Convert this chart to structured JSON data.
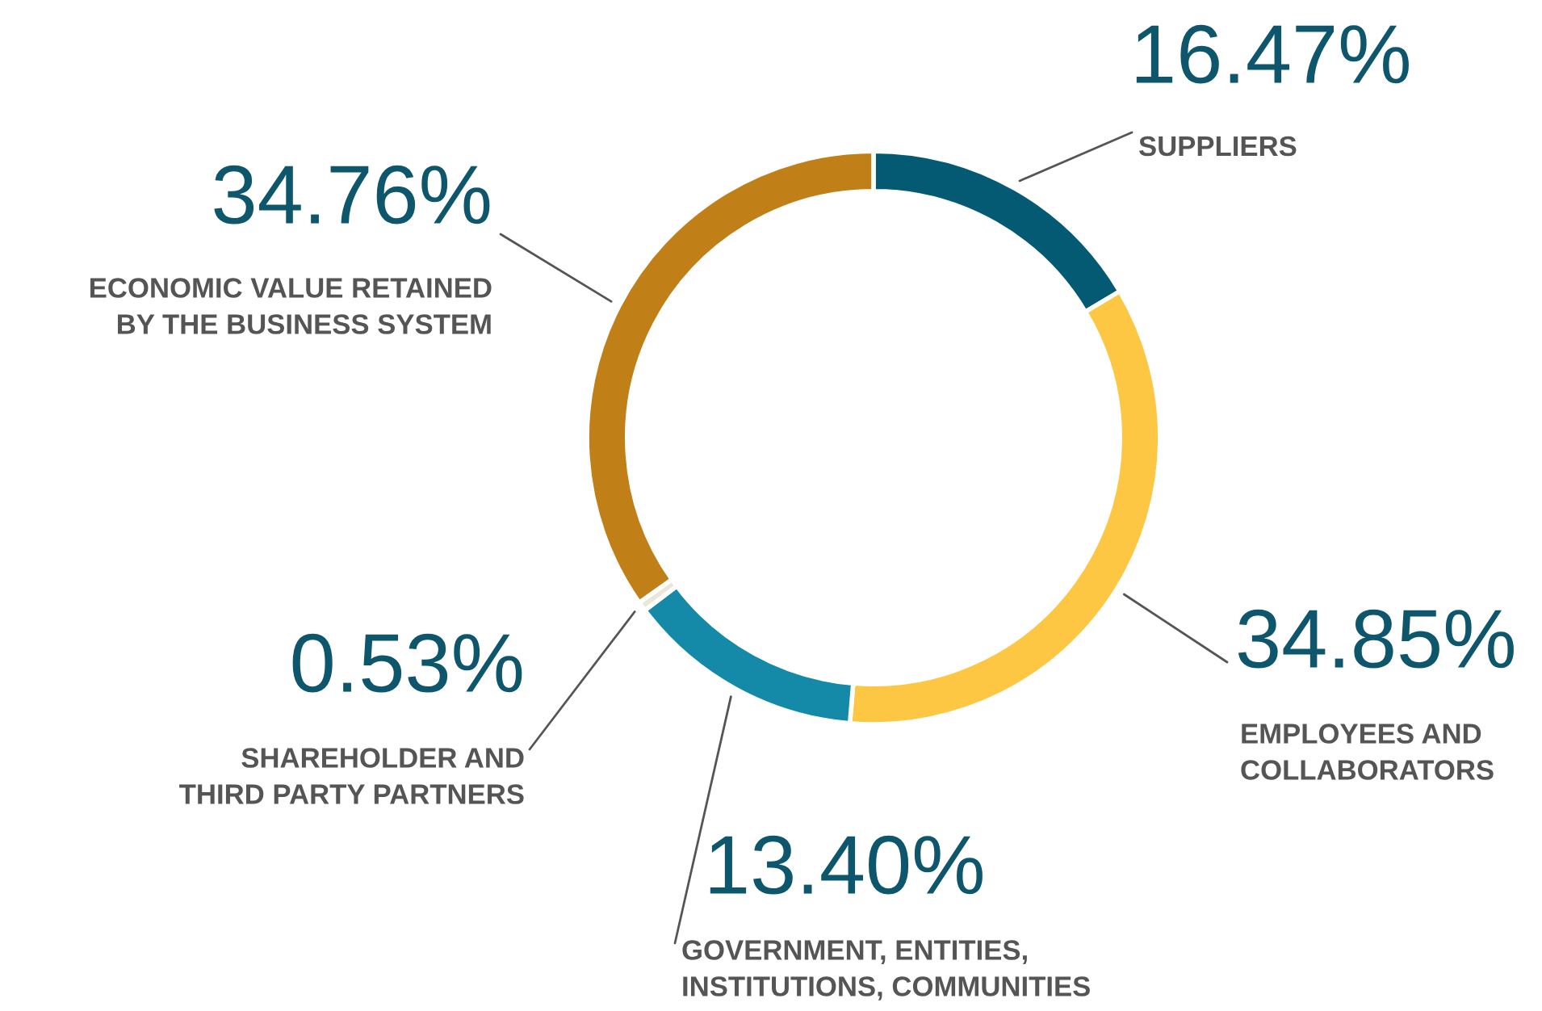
{
  "chart_data": {
    "type": "donut",
    "categories": [
      "SUPPLIERS",
      "EMPLOYEES AND\nCOLLABORATORS",
      "GOVERNMENT, ENTITIES,\nINSTITUTIONS, COMMUNITIES",
      "SHAREHOLDER AND\nTHIRD PARTY PARTNERS",
      "ECONOMIC VALUE RETAINED\nBY THE BUSINESS SYSTEM"
    ],
    "values": [
      16.47,
      34.85,
      13.4,
      0.53,
      34.76
    ],
    "value_labels": [
      "16.47%",
      "34.85%",
      "13.40%",
      "0.53%",
      "34.76%"
    ],
    "colors": [
      "#045a73",
      "#fdc643",
      "#148aa8",
      "#ece6d6",
      "#c07f17"
    ],
    "legend": false
  }
}
